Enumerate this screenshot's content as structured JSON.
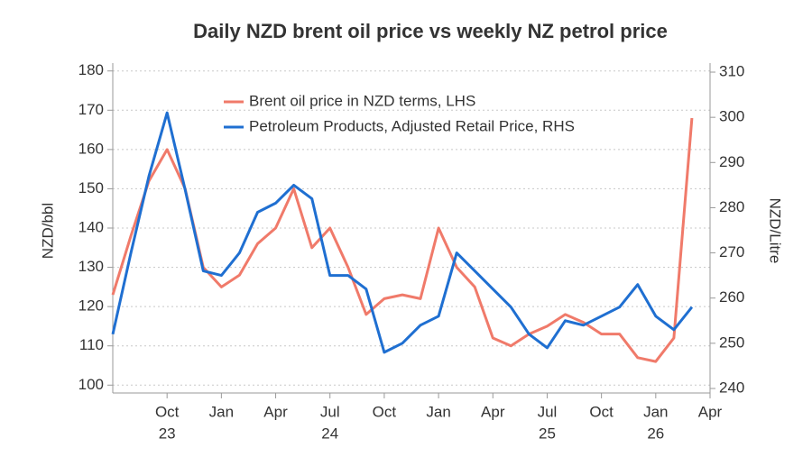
{
  "chart_data": {
    "type": "line",
    "title": "Daily NZD brent oil price vs weekly NZ petrol price",
    "y_label": "NZD/bbl",
    "y2_label": "NZD/Litre",
    "x": [
      "2023-07",
      "2023-08",
      "2023-09",
      "2023-10",
      "2023-11",
      "2023-12",
      "2024-01",
      "2024-02",
      "2024-03",
      "2024-04",
      "2024-05",
      "2024-06",
      "2024-07",
      "2024-08",
      "2024-09",
      "2024-10",
      "2024-11",
      "2024-12",
      "2025-01",
      "2025-02",
      "2025-03",
      "2025-04",
      "2025-05",
      "2025-06",
      "2025-07",
      "2025-08",
      "2025-09",
      "2025-10",
      "2025-11",
      "2025-12",
      "2026-01",
      "2026-02",
      "2026-03"
    ],
    "series": [
      {
        "name": "Brent oil price in NZD terms, LHS",
        "color": "#f07a6a",
        "values": [
          123,
          138,
          152,
          160,
          150,
          130,
          125,
          128,
          136,
          140,
          150,
          135,
          140,
          130,
          118,
          122,
          123,
          122,
          140,
          130,
          125,
          112,
          110,
          113,
          115,
          118,
          116,
          113,
          113,
          107,
          106,
          112,
          168
        ]
      },
      {
        "name": "Petroleum Products, Adjusted Retail Price, RHS",
        "color": "#1f6fd1",
        "axis": "y2",
        "values": [
          252,
          270,
          287,
          301,
          284,
          266,
          265,
          270,
          279,
          281,
          285,
          282,
          265,
          265,
          262,
          248,
          250,
          254,
          256,
          270,
          266,
          262,
          258,
          252,
          249,
          255,
          254,
          256,
          258,
          263,
          256,
          253,
          258
        ]
      }
    ],
    "xlim": [
      "2023-07",
      "2026-04"
    ],
    "xticks": [
      {
        "value": "2023-10",
        "label": "Oct"
      },
      {
        "value": "2024-01",
        "label": "Jan"
      },
      {
        "value": "2024-04",
        "label": "Apr"
      },
      {
        "value": "2024-07",
        "label": "Jul"
      },
      {
        "value": "2024-10",
        "label": "Oct"
      },
      {
        "value": "2025-01",
        "label": "Jan"
      },
      {
        "value": "2025-04",
        "label": "Apr"
      },
      {
        "value": "2025-07",
        "label": "Jul"
      },
      {
        "value": "2025-10",
        "label": "Oct"
      },
      {
        "value": "2026-01",
        "label": "Jan"
      },
      {
        "value": "2026-04",
        "label": "Apr"
      }
    ],
    "xtick_years": [
      {
        "value": "2023-10",
        "label": "23"
      },
      {
        "value": "2024-07",
        "label": "24"
      },
      {
        "value": "2025-07",
        "label": "25"
      },
      {
        "value": "2026-01",
        "label": "26"
      }
    ],
    "ylim": [
      98,
      182
    ],
    "yticks": [
      100,
      110,
      120,
      130,
      140,
      150,
      160,
      170,
      180
    ],
    "y2lim": [
      239,
      312
    ],
    "y2ticks": [
      240,
      250,
      260,
      270,
      280,
      290,
      300,
      310
    ],
    "grid": true
  }
}
